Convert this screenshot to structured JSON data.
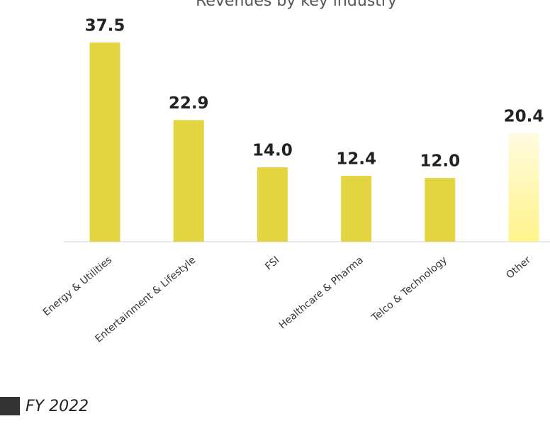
{
  "chart_data": {
    "type": "bar",
    "title": "Revenues by key industry",
    "categories": [
      "Energy & Utilities",
      "Entertainment & Lifestyle",
      "FSI",
      "Healthcare & Pharma",
      "Telco & Technology",
      "Other"
    ],
    "series": [
      {
        "name": "FY 2022",
        "color": "#333333",
        "values": [
          37.5,
          22.9,
          14.0,
          12.4,
          12.0,
          20.4
        ],
        "value_labels": [
          "37.5",
          "22.9",
          "14.0",
          "12.4",
          "12.0",
          "20.4"
        ],
        "bar_colors": [
          "#e3d542",
          "#e3d542",
          "#e3d542",
          "#e3d542",
          "#e3d542",
          "#fff7a8"
        ]
      }
    ]
  }
}
